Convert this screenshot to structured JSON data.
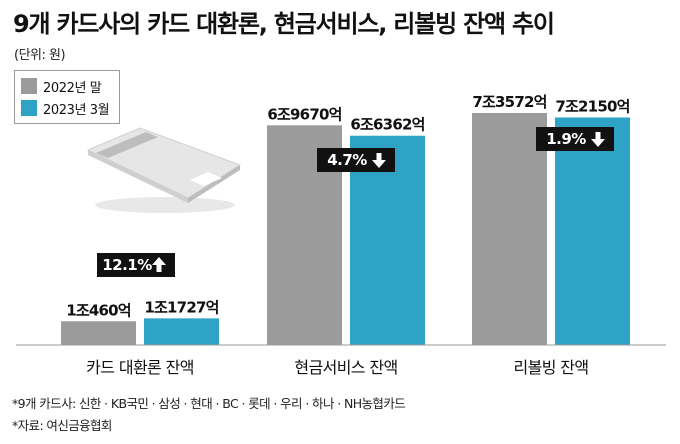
{
  "chart_data": {
    "type": "bar",
    "title": "9개 카드사의 카드 대환론, 현금서비스, 리볼빙 잔액 추이",
    "unit_label": "(단위: 원)",
    "categories": [
      "카드 대환론 잔액",
      "현금서비스 잔액",
      "리볼빙 잔액"
    ],
    "series": [
      {
        "name": "2022년 말",
        "color": "#9b9b9b",
        "values": [
          1046000000000,
          6967000000000,
          7357200000000
        ],
        "labels": [
          "1조460억",
          "6조9670억",
          "7조3572억"
        ]
      },
      {
        "name": "2023년 3월",
        "color": "#2fa3c6",
        "values": [
          1172700000000,
          6636200000000,
          7215000000000
        ],
        "labels": [
          "1조1727억",
          "6조6362억",
          "7조2150억"
        ]
      }
    ],
    "changes": [
      {
        "text": "12.1%",
        "direction": "up"
      },
      {
        "text": "4.7%",
        "direction": "down"
      },
      {
        "text": "1.9%",
        "direction": "down"
      }
    ],
    "ylim": [
      0,
      8000000000000
    ],
    "legend_position": "top-left"
  },
  "footnotes": [
    "*9개 카드사: 신한 · KB국민 · 삼성 · 현대 · BC · 롯데 · 우리 · 하나 · NH농협카드",
    "*자료: 여신금융협회"
  ],
  "icons": [
    "credit-card-icon",
    "arrow-up-icon",
    "arrow-down-icon"
  ]
}
